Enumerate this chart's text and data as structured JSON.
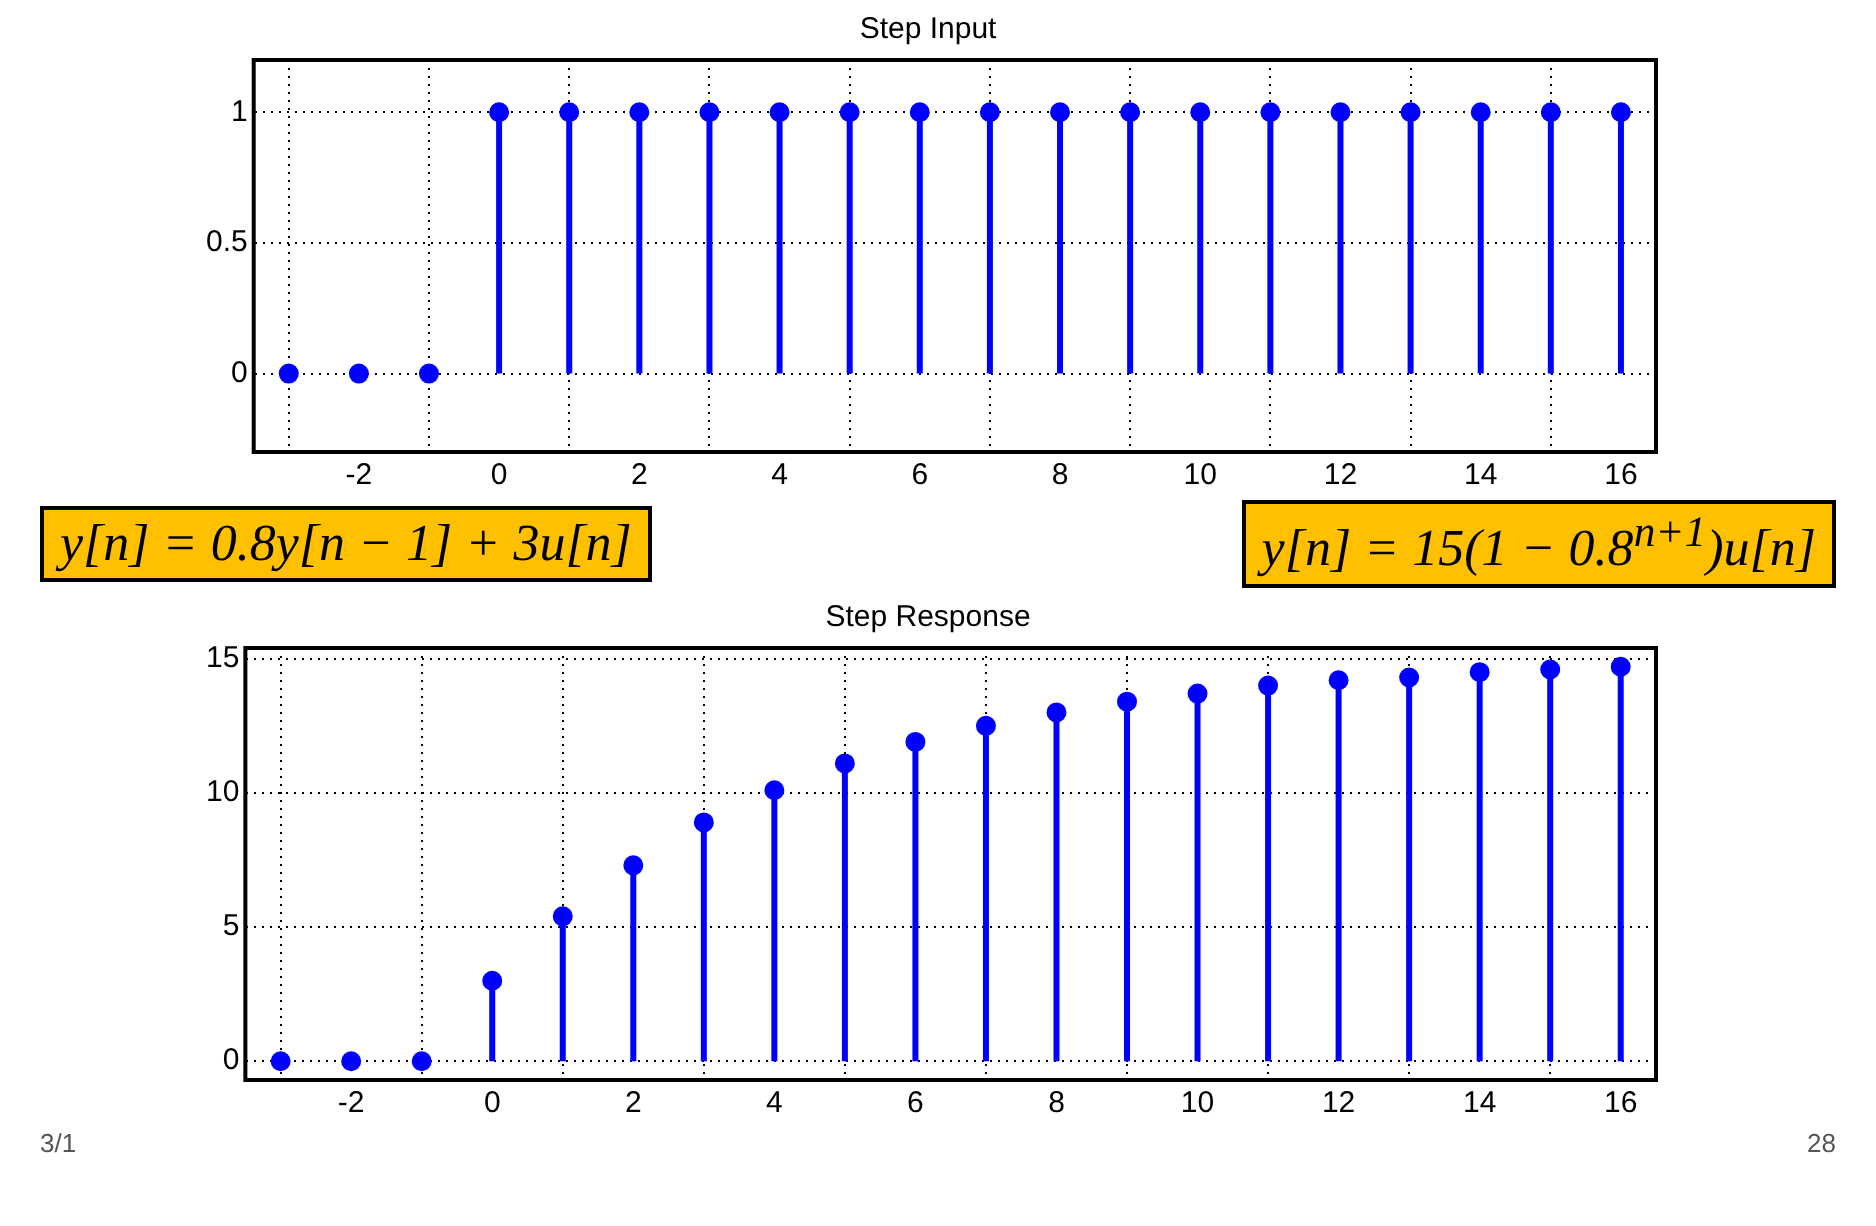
{
  "chart_data": [
    {
      "type": "lollipop",
      "title": "Step Input",
      "x": [
        -3,
        -2,
        -1,
        0,
        1,
        2,
        3,
        4,
        5,
        6,
        7,
        8,
        9,
        10,
        11,
        12,
        13,
        14,
        15,
        16
      ],
      "values": [
        0,
        0,
        0,
        1,
        1,
        1,
        1,
        1,
        1,
        1,
        1,
        1,
        1,
        1,
        1,
        1,
        1,
        1,
        1,
        1
      ],
      "color": "#0000ff",
      "marker": "circle",
      "grid": true,
      "xlim": [
        -3.5,
        16.5
      ],
      "xticks": [
        -2,
        0,
        2,
        4,
        6,
        8,
        10,
        12,
        14,
        16
      ],
      "ylim": [
        -0.3,
        1.2
      ],
      "yticks": [
        0,
        0.5,
        1
      ],
      "annotations": [
        "y[n] = 0.8y[n − 1] + 3u[n]",
        "y[n] = 15(1 − 0.8$^{n+1}$)u[n]"
      ]
    },
    {
      "type": "lollipop",
      "title": "Step Response",
      "x": [
        -3,
        -2,
        -1,
        0,
        1,
        2,
        3,
        4,
        5,
        6,
        7,
        8,
        9,
        10,
        11,
        12,
        13,
        14,
        15,
        16
      ],
      "values": [
        0,
        0,
        0,
        3,
        5.4,
        7.3,
        8.9,
        10.1,
        11.1,
        11.9,
        12.5,
        13,
        13.4,
        13.7,
        14,
        14.2,
        14.3,
        14.5,
        14.6,
        14.7
      ],
      "color": "#0000ff",
      "marker": "circle",
      "grid": true,
      "xlim": [
        -3.5,
        16.5
      ],
      "xticks": [
        -2,
        0,
        2,
        4,
        6,
        8,
        10,
        12,
        14,
        16
      ],
      "ylim": [
        -0.7,
        15.4
      ],
      "yticks": [
        0,
        5,
        10,
        15
      ],
      "annotations": [
        "3/1",
        "28"
      ]
    }
  ]
}
